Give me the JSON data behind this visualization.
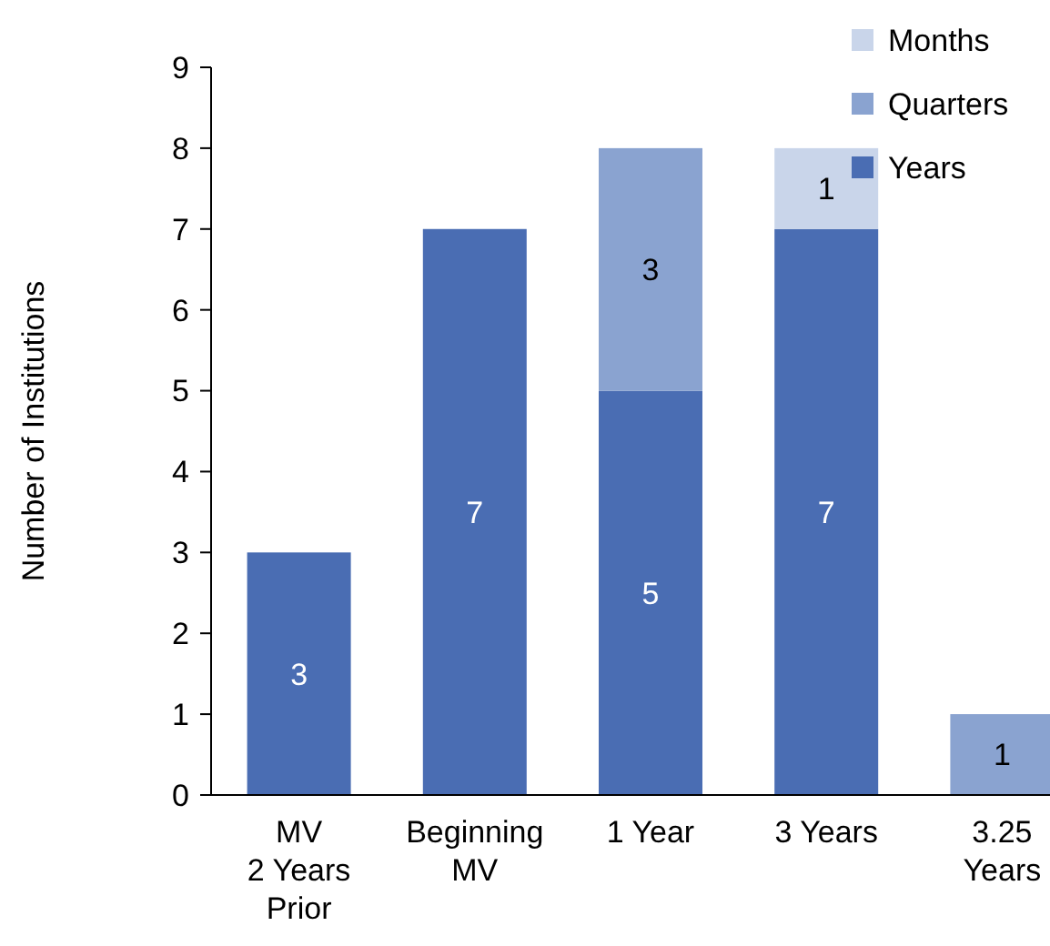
{
  "chart_data": {
    "type": "bar",
    "stacked": true,
    "ylabel": "Number of Institutions",
    "categories": [
      "MV\n2 Years\nPrior",
      "Beginning\nMV",
      "1 Year",
      "3 Years",
      "3.25\nYears"
    ],
    "series": [
      {
        "name": "Years",
        "color": "#4a6db3",
        "values": [
          3,
          7,
          5,
          7,
          null
        ]
      },
      {
        "name": "Quarters",
        "color": "#8aa3d0",
        "values": [
          null,
          null,
          3,
          null,
          1
        ]
      },
      {
        "name": "Months",
        "color": "#c9d5ea",
        "values": [
          null,
          null,
          null,
          1,
          null
        ]
      }
    ],
    "ylim": [
      0,
      9
    ],
    "yticks": [
      0,
      1,
      2,
      3,
      4,
      5,
      6,
      7,
      8,
      9
    ],
    "grid": false,
    "legend": "top right",
    "data_labels": true
  }
}
